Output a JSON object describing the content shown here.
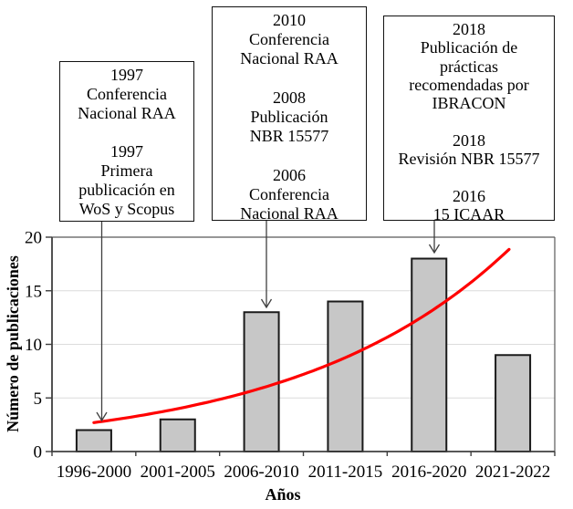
{
  "chart_data": {
    "type": "bar",
    "title": "",
    "xlabel": "Años",
    "ylabel": "Número de publicaciones",
    "categories": [
      "1996-2000",
      "2001-2005",
      "2006-2010",
      "2011-2015",
      "2016-2020",
      "2021-2022"
    ],
    "values": [
      2,
      3,
      13,
      14,
      18,
      9
    ],
    "ylim": [
      0,
      20
    ],
    "yticks": [
      0,
      5,
      10,
      15,
      20
    ],
    "grid": true,
    "legend_position": "none",
    "bar_fill": "#C7C7C7",
    "bar_stroke": "#1A1A1A",
    "gridline_color": "#DCDCDC",
    "axis_color": "#3F3F3F",
    "border_color": "#595959",
    "trendline": {
      "type": "exponential",
      "color": "#FF0000",
      "start": {
        "category": "1996-2000",
        "value": 2.7
      },
      "end": {
        "category": "2021-2022",
        "value": 19.2
      }
    }
  },
  "annotations": [
    {
      "lines": [
        "1997",
        "Conferencia",
        "Nacional RAA",
        "",
        "1997",
        "Primera",
        "publicación en",
        "WoS y Scopus"
      ],
      "points_to_category": "1996-2000"
    },
    {
      "lines": [
        "2010",
        "Conferencia",
        "Nacional RAA",
        "",
        "2008",
        "Publicación",
        "NBR 15577",
        "",
        "2006",
        "Conferencia",
        "Nacional RAA"
      ],
      "points_to_category": "2006-2010"
    },
    {
      "lines": [
        "2018",
        "Publicación de",
        "prácticas",
        "recomendadas por",
        "IBRACON",
        "",
        "2018",
        "Revisión NBR 15577",
        "",
        "2016",
        "15 ICAAR"
      ],
      "points_to_category": "2016-2020"
    }
  ]
}
